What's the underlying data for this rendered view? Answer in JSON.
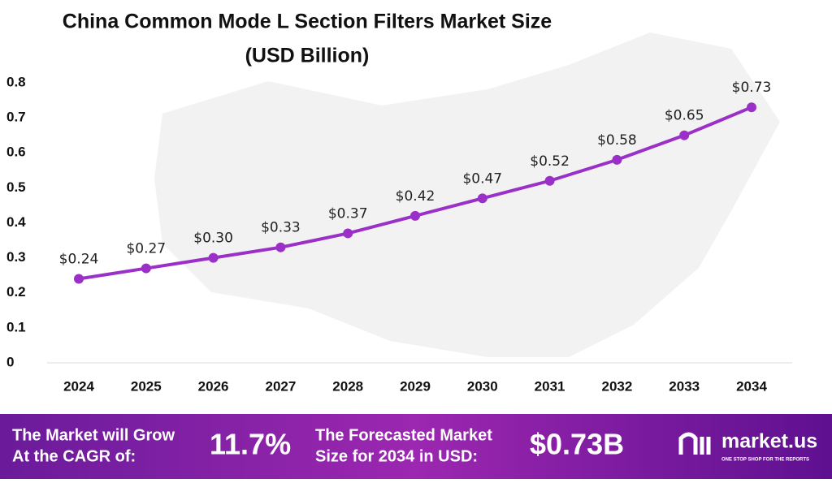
{
  "chart_data": {
    "type": "line",
    "title": "China Common Mode L Section Filters Market Size",
    "subtitle": "(USD Billion)",
    "categories": [
      "2024",
      "2025",
      "2026",
      "2027",
      "2028",
      "2029",
      "2030",
      "2031",
      "2032",
      "2033",
      "2034"
    ],
    "values": [
      0.24,
      0.27,
      0.3,
      0.33,
      0.37,
      0.42,
      0.47,
      0.52,
      0.58,
      0.65,
      0.73
    ],
    "value_labels": [
      "$0.24",
      "$0.27",
      "$0.30",
      "$0.33",
      "$0.37",
      "$0.42",
      "$0.47",
      "$0.52",
      "$0.58",
      "$0.65",
      "$0.73"
    ],
    "color": "#9b30c8",
    "ylim": [
      0,
      0.8
    ],
    "yticks": [
      0,
      0.1,
      0.2,
      0.3,
      0.4,
      0.5,
      0.6,
      0.7,
      0.8
    ],
    "grid": false
  },
  "footer": {
    "cagr_text_1": "The Market will Grow",
    "cagr_text_2": "At the CAGR of:",
    "cagr": "11.7%",
    "forecast_text_1": "The Forecasted Market",
    "forecast_text_2": "Size for 2034 in USD:",
    "forecast": "$0.73B",
    "brand": "market.us",
    "tagline": "ONE STOP SHOP FOR THE REPORTS"
  }
}
